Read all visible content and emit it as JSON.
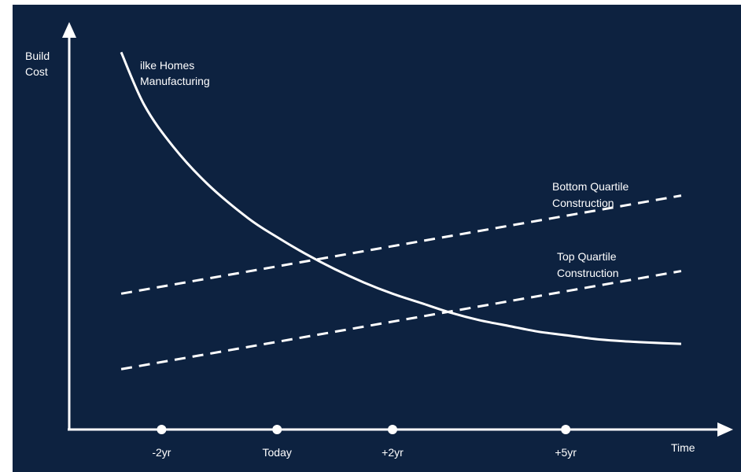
{
  "chart_data": {
    "type": "line",
    "title": "",
    "ylabel": [
      "Build",
      "Cost"
    ],
    "xlabel": "Time",
    "x_ticks": [
      "-2yr",
      "Today",
      "+2yr",
      "+5yr"
    ],
    "series": [
      {
        "name": [
          "ilke Homes",
          "Manufacturing"
        ],
        "style": "solid",
        "color": "#ffffff",
        "x": [
          -2.7,
          -2.3,
          -1.8,
          -1.2,
          -0.5,
          0,
          0.5,
          1,
          1.5,
          2,
          2.5,
          3,
          3.5,
          4,
          4.5,
          5,
          5.5,
          6,
          6.5,
          7
        ],
        "y": [
          100,
          86,
          75,
          65,
          56,
          51,
          46.5,
          42.5,
          39,
          36,
          33.5,
          31,
          29,
          27.5,
          26,
          25,
          24,
          23.4,
          23,
          22.7
        ]
      },
      {
        "name": [
          "Bottom Quartile",
          "Construction"
        ],
        "style": "dashed",
        "color": "#ffffff",
        "x": [
          -2.7,
          7
        ],
        "y": [
          36,
          62
        ]
      },
      {
        "name": [
          "Top Quartile",
          "Construction"
        ],
        "style": "dashed",
        "color": "#ffffff",
        "x": [
          -2.7,
          7
        ],
        "y": [
          16,
          42
        ]
      }
    ],
    "xlim": [
      -3.6,
      7.9
    ],
    "ylim": [
      0,
      108
    ],
    "grid": false,
    "legend": "inline labels"
  }
}
